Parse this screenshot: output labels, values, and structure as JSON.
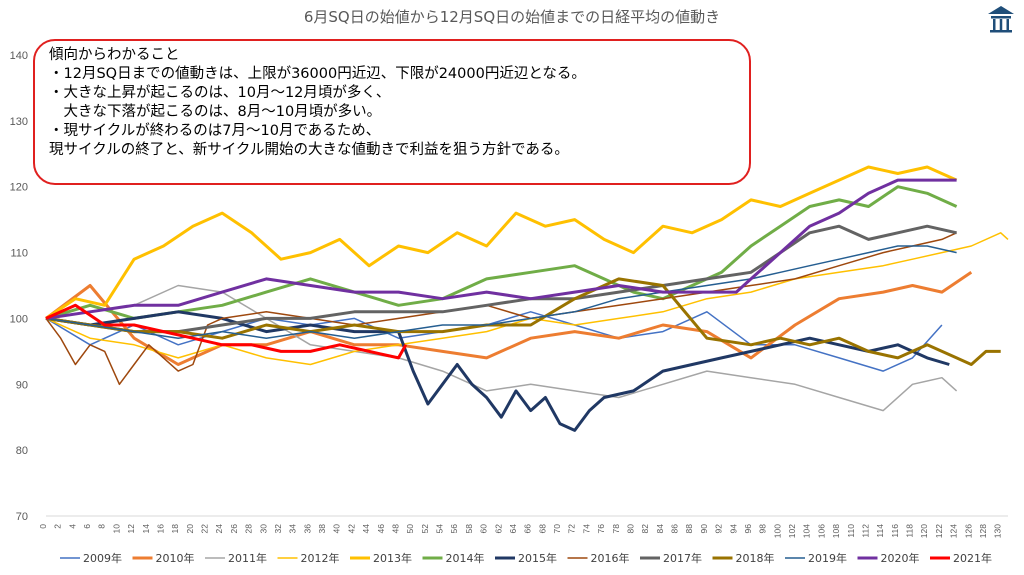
{
  "chart_data": {
    "type": "line",
    "title": "6月SQ日の始値から12月SQ日の始値までの日経平均の値動き",
    "ylim": [
      70,
      140
    ],
    "yticks": [
      70,
      80,
      90,
      100,
      110,
      120,
      130,
      140
    ],
    "xlim": [
      0,
      131
    ],
    "xticks": [
      0,
      2,
      4,
      6,
      8,
      10,
      12,
      14,
      16,
      18,
      20,
      22,
      24,
      26,
      28,
      30,
      32,
      34,
      36,
      38,
      40,
      42,
      44,
      46,
      48,
      50,
      52,
      54,
      56,
      58,
      60,
      62,
      64,
      66,
      68,
      70,
      72,
      74,
      76,
      78,
      80,
      82,
      84,
      86,
      88,
      90,
      92,
      94,
      96,
      98,
      100,
      102,
      104,
      106,
      108,
      110,
      112,
      114,
      116,
      118,
      120,
      122,
      124,
      126,
      128,
      130
    ],
    "legend_position": "bottom",
    "grid": false,
    "series": [
      {
        "name": "2009年",
        "color": "#4472c4",
        "width": 1.5,
        "x": [
          0,
          6,
          12,
          18,
          24,
          30,
          36,
          42,
          48,
          54,
          60,
          66,
          72,
          78,
          84,
          90,
          96,
          102,
          108,
          114,
          118,
          122
        ],
        "y": [
          100,
          96,
          99,
          96,
          98,
          100,
          99,
          100,
          97,
          98,
          99,
          101,
          99,
          97,
          98,
          101,
          96,
          96,
          94,
          92,
          94,
          99
        ]
      },
      {
        "name": "2010年",
        "color": "#ed7d31",
        "width": 3,
        "x": [
          0,
          6,
          12,
          18,
          24,
          30,
          36,
          42,
          48,
          54,
          60,
          66,
          72,
          78,
          84,
          90,
          96,
          102,
          108,
          114,
          118,
          122,
          126
        ],
        "y": [
          100,
          105,
          97,
          93,
          96,
          96,
          98,
          96,
          96,
          95,
          94,
          97,
          98,
          97,
          99,
          98,
          94,
          99,
          103,
          104,
          105,
          104,
          107
        ]
      },
      {
        "name": "2011年",
        "color": "#a5a5a5",
        "width": 1.5,
        "x": [
          0,
          6,
          12,
          18,
          24,
          30,
          36,
          42,
          48,
          54,
          60,
          66,
          72,
          78,
          84,
          90,
          96,
          102,
          108,
          114,
          118,
          122,
          124
        ],
        "y": [
          100,
          101,
          102,
          105,
          104,
          100,
          96,
          95,
          94,
          92,
          89,
          90,
          89,
          88,
          90,
          92,
          91,
          90,
          88,
          86,
          90,
          91,
          89
        ]
      },
      {
        "name": "2012年",
        "color": "#ffc000",
        "width": 1.5,
        "x": [
          0,
          6,
          12,
          18,
          24,
          30,
          36,
          42,
          48,
          54,
          60,
          66,
          72,
          78,
          84,
          90,
          96,
          102,
          108,
          114,
          118,
          122,
          126,
          130,
          131
        ],
        "y": [
          100,
          97,
          96,
          94,
          96,
          94,
          93,
          95,
          96,
          97,
          98,
          100,
          99,
          100,
          101,
          103,
          104,
          106,
          107,
          108,
          109,
          110,
          111,
          113,
          112
        ]
      },
      {
        "name": "2013年",
        "color": "#ffc000",
        "width": 3,
        "x": [
          0,
          4,
          8,
          12,
          16,
          20,
          24,
          28,
          32,
          36,
          40,
          44,
          48,
          52,
          56,
          60,
          64,
          68,
          72,
          76,
          80,
          84,
          88,
          92,
          96,
          100,
          104,
          108,
          112,
          116,
          120,
          124
        ],
        "y": [
          100,
          103,
          102,
          109,
          111,
          114,
          116,
          113,
          109,
          110,
          112,
          108,
          111,
          110,
          113,
          111,
          116,
          114,
          115,
          112,
          110,
          114,
          113,
          115,
          118,
          117,
          119,
          121,
          123,
          122,
          123,
          121
        ]
      },
      {
        "name": "2014年",
        "color": "#70ad47",
        "width": 3,
        "x": [
          0,
          6,
          12,
          18,
          24,
          30,
          36,
          42,
          48,
          54,
          60,
          66,
          72,
          76,
          80,
          84,
          88,
          92,
          96,
          100,
          104,
          108,
          112,
          116,
          120,
          124
        ],
        "y": [
          100,
          102,
          100,
          101,
          102,
          104,
          106,
          104,
          102,
          103,
          106,
          107,
          108,
          106,
          104,
          103,
          105,
          107,
          111,
          114,
          117,
          118,
          117,
          120,
          119,
          117
        ]
      },
      {
        "name": "2015年",
        "color": "#203864",
        "width": 3,
        "x": [
          0,
          6,
          12,
          18,
          24,
          30,
          36,
          42,
          48,
          50,
          52,
          54,
          56,
          58,
          60,
          62,
          64,
          66,
          68,
          70,
          72,
          74,
          76,
          80,
          84,
          88,
          92,
          96,
          100,
          104,
          108,
          112,
          116,
          120,
          123
        ],
        "y": [
          100,
          99,
          100,
          101,
          100,
          98,
          99,
          98,
          98,
          92,
          87,
          90,
          93,
          90,
          88,
          85,
          89,
          86,
          88,
          84,
          83,
          86,
          88,
          89,
          92,
          93,
          94,
          95,
          96,
          97,
          96,
          95,
          96,
          94,
          93
        ]
      },
      {
        "name": "2016年",
        "color": "#9e480e",
        "width": 1.5,
        "x": [
          0,
          2,
          4,
          6,
          8,
          10,
          12,
          14,
          16,
          18,
          20,
          22,
          24,
          30,
          36,
          42,
          48,
          54,
          60,
          66,
          72,
          78,
          84,
          90,
          96,
          102,
          108,
          114,
          118,
          122,
          124
        ],
        "y": [
          100,
          97,
          93,
          96,
          95,
          90,
          93,
          96,
          94,
          92,
          93,
          99,
          100,
          101,
          100,
          99,
          100,
          101,
          102,
          100,
          101,
          102,
          103,
          104,
          105,
          106,
          108,
          110,
          111,
          112,
          113
        ]
      },
      {
        "name": "2017年",
        "color": "#636363",
        "width": 3,
        "x": [
          0,
          6,
          12,
          18,
          24,
          30,
          36,
          42,
          48,
          54,
          60,
          66,
          72,
          78,
          84,
          90,
          96,
          100,
          104,
          108,
          112,
          116,
          120,
          124
        ],
        "y": [
          100,
          99,
          98,
          98,
          99,
          100,
          100,
          101,
          101,
          101,
          102,
          103,
          103,
          104,
          105,
          106,
          107,
          110,
          113,
          114,
          112,
          113,
          114,
          113
        ]
      },
      {
        "name": "2018年",
        "color": "#997300",
        "width": 3,
        "x": [
          0,
          6,
          12,
          18,
          24,
          30,
          36,
          42,
          48,
          54,
          60,
          66,
          72,
          78,
          84,
          90,
          96,
          100,
          104,
          108,
          112,
          116,
          120,
          124,
          126,
          128,
          130
        ],
        "y": [
          100,
          99,
          98,
          98,
          97,
          99,
          98,
          99,
          98,
          98,
          99,
          99,
          103,
          106,
          105,
          97,
          96,
          97,
          96,
          97,
          95,
          94,
          96,
          94,
          93,
          95,
          95
        ]
      },
      {
        "name": "2019年",
        "color": "#255e91",
        "width": 1.5,
        "x": [
          0,
          6,
          12,
          18,
          24,
          30,
          36,
          42,
          48,
          54,
          60,
          66,
          72,
          78,
          84,
          90,
          96,
          100,
          104,
          108,
          112,
          116,
          120,
          124
        ],
        "y": [
          100,
          99,
          98,
          97,
          98,
          97,
          98,
          97,
          98,
          99,
          99,
          100,
          101,
          103,
          104,
          105,
          106,
          107,
          108,
          109,
          110,
          111,
          111,
          110
        ]
      },
      {
        "name": "2020年",
        "color": "#7030a0",
        "width": 3,
        "x": [
          0,
          6,
          12,
          18,
          24,
          30,
          36,
          42,
          48,
          54,
          60,
          66,
          72,
          78,
          84,
          90,
          94,
          96,
          100,
          104,
          108,
          112,
          116,
          120,
          124
        ],
        "y": [
          100,
          101,
          102,
          102,
          104,
          106,
          105,
          104,
          104,
          103,
          104,
          103,
          104,
          105,
          104,
          104,
          104,
          106,
          110,
          114,
          116,
          119,
          121,
          121,
          121
        ]
      },
      {
        "name": "2021年",
        "color": "#ff0000",
        "width": 3,
        "x": [
          0,
          4,
          8,
          12,
          16,
          20,
          24,
          28,
          32,
          36,
          40,
          44,
          48,
          49
        ],
        "y": [
          100,
          102,
          99,
          99,
          98,
          97,
          96,
          96,
          95,
          95,
          96,
          95,
          94,
          96
        ]
      }
    ]
  },
  "note": {
    "lines": [
      "傾向からわかること",
      "・12月SQ日までの値動きは、上限が36000円近辺、下限が24000円近辺となる。",
      "・大きな上昇が起こるのは、10月～12月頃が多く、",
      "　大きな下落が起こるのは、8月～10月頃が多い。",
      "・現サイクルが終わるのは7月～10月であるため、",
      "現サイクルの終了と、新サイクル開始の大きな値動きで利益を狙う方針である。"
    ]
  },
  "logo": {
    "icon": "pavilion-logo-icon",
    "color": "#1f4e79"
  }
}
